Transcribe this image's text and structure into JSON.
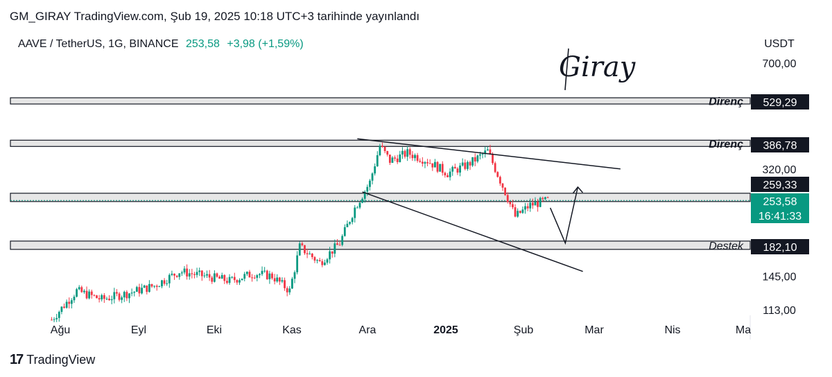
{
  "header": {
    "published": "GM_GIRAY TradingView.com, Şub 19, 2025 10:18 UTC+3 tarihinde yayınlandı"
  },
  "symbol": {
    "name": "AAVE / TetherUS, 1G, BINANCE",
    "price": "253,58",
    "change": "+3,98 (+1,59%)"
  },
  "signature": "Giray",
  "footer": {
    "brand": "TradingView",
    "logo": "tradingview-logo-icon"
  },
  "colors": {
    "up": "#089981",
    "down": "#F23645",
    "zone": "#E6E6E6",
    "text": "#131722"
  },
  "chart_data": {
    "type": "candlestick",
    "currency": "USDT",
    "scale": "log",
    "y_ticks": [
      "700,00",
      "320,00",
      "145,00",
      "113,00"
    ],
    "x_ticks": [
      "Ağu",
      "Eyl",
      "Eki",
      "Kas",
      "Ara",
      "2025",
      "Şub",
      "Mar",
      "Nis",
      "Ma"
    ],
    "price_labels": [
      {
        "text": "529,29",
        "value": 529.29,
        "style": "black"
      },
      {
        "text": "386,78",
        "value": 386.78,
        "style": "black"
      },
      {
        "text": "259,33",
        "value": 259.33,
        "style": "black"
      },
      {
        "text": "253,58",
        "value": 253.58,
        "style": "green"
      },
      {
        "text": "16:41:33",
        "value": 253.58,
        "style": "green-sub"
      },
      {
        "text": "182,10",
        "value": 182.1,
        "style": "black"
      }
    ],
    "zones": [
      {
        "name": "Direnç",
        "value": 529.29
      },
      {
        "name": "Direnç",
        "value": 386.78
      },
      {
        "name": "",
        "value": 259.33
      },
      {
        "name": "Destek",
        "value": 182.1
      }
    ],
    "trendlines": [
      {
        "name": "upper",
        "from": [
          "2024-12-05",
          400
        ],
        "to": [
          "2025-03-20",
          320
        ]
      },
      {
        "name": "lower",
        "from": [
          "2024-12-07",
          270
        ],
        "to": [
          "2025-03-05",
          150
        ]
      }
    ],
    "projection": [
      {
        "x": "2025-02-20",
        "y": 240
      },
      {
        "x": "2025-02-26",
        "y": 185
      },
      {
        "x": "2025-03-03",
        "y": 280
      }
    ],
    "series_approx": [
      {
        "date": "2024-08-05",
        "close": 105
      },
      {
        "date": "2024-08-15",
        "close": 130
      },
      {
        "date": "2024-08-25",
        "close": 122
      },
      {
        "date": "2024-09-05",
        "close": 128
      },
      {
        "date": "2024-09-15",
        "close": 135
      },
      {
        "date": "2024-09-25",
        "close": 150
      },
      {
        "date": "2024-10-05",
        "close": 145
      },
      {
        "date": "2024-10-15",
        "close": 140
      },
      {
        "date": "2024-10-25",
        "close": 148
      },
      {
        "date": "2024-11-01",
        "close": 145
      },
      {
        "date": "2024-11-08",
        "close": 130
      },
      {
        "date": "2024-11-12",
        "close": 180
      },
      {
        "date": "2024-11-20",
        "close": 160
      },
      {
        "date": "2024-11-28",
        "close": 185
      },
      {
        "date": "2024-12-04",
        "close": 240
      },
      {
        "date": "2024-12-10",
        "close": 290
      },
      {
        "date": "2024-12-14",
        "close": 380
      },
      {
        "date": "2024-12-18",
        "close": 340
      },
      {
        "date": "2024-12-25",
        "close": 360
      },
      {
        "date": "2025-01-02",
        "close": 340
      },
      {
        "date": "2025-01-10",
        "close": 310
      },
      {
        "date": "2025-01-18",
        "close": 330
      },
      {
        "date": "2025-01-26",
        "close": 365
      },
      {
        "date": "2025-02-02",
        "close": 270
      },
      {
        "date": "2025-02-06",
        "close": 225
      },
      {
        "date": "2025-02-12",
        "close": 245
      },
      {
        "date": "2025-02-19",
        "close": 253.58
      }
    ]
  }
}
